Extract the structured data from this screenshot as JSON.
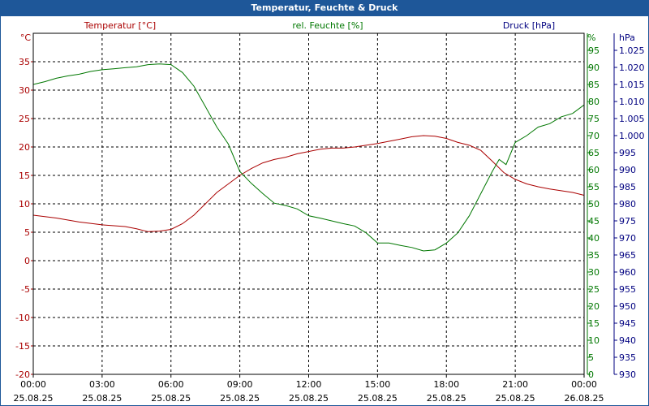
{
  "window": {
    "title": "Temperatur, Feuchte & Druck"
  },
  "chart_data": {
    "type": "line",
    "title": "Temperatur, Feuchte & Druck",
    "colors": {
      "temperature": "#aa0000",
      "humidity": "#007700",
      "pressure": "#000080",
      "frame": "#1e5799"
    },
    "x_ticks": [
      {
        "time": "00:00",
        "date": "25.08.25"
      },
      {
        "time": "03:00",
        "date": "25.08.25"
      },
      {
        "time": "06:00",
        "date": "25.08.25"
      },
      {
        "time": "09:00",
        "date": "25.08.25"
      },
      {
        "time": "12:00",
        "date": "25.08.25"
      },
      {
        "time": "15:00",
        "date": "25.08.25"
      },
      {
        "time": "18:00",
        "date": "25.08.25"
      },
      {
        "time": "21:00",
        "date": "25.08.25"
      },
      {
        "time": "00:00",
        "date": "26.08.25"
      }
    ],
    "y_axes": {
      "temperature": {
        "label": "Temperatur [°C]",
        "unit": "°C",
        "range": [
          -20,
          40
        ],
        "ticks": [
          "35",
          "30",
          "25",
          "20",
          "15",
          "10",
          "5",
          "0",
          "-5",
          "-10",
          "-15",
          "-20"
        ]
      },
      "humidity": {
        "label": "rel. Feuchte [%]",
        "unit": "%",
        "range": [
          0,
          100
        ],
        "ticks": [
          "95",
          "90",
          "85",
          "80",
          "75",
          "70",
          "65",
          "60",
          "55",
          "50",
          "45",
          "40",
          "35",
          "30",
          "25",
          "20",
          "15",
          "10",
          "5",
          "0"
        ]
      },
      "pressure": {
        "label": "Druck [hPa]",
        "unit": "hPa",
        "range": [
          930,
          1030
        ],
        "ticks": [
          "1.025",
          "1.020",
          "1.015",
          "1.010",
          "1.005",
          "1.000",
          "995",
          "990",
          "985",
          "980",
          "975",
          "970",
          "965",
          "960",
          "955",
          "950",
          "945",
          "940",
          "935",
          "930"
        ]
      }
    },
    "grid": true,
    "series": [
      {
        "name": "Temperatur [°C]",
        "axis": "temperature",
        "x_hours": [
          0,
          1,
          2,
          3,
          4,
          4.5,
          5,
          5.5,
          6,
          6.5,
          7,
          7.5,
          8,
          8.5,
          9,
          9.5,
          10,
          10.5,
          11,
          11.5,
          12,
          12.5,
          13,
          13.5,
          14,
          14.5,
          15,
          15.5,
          16,
          16.5,
          17,
          17.5,
          18,
          18.5,
          19,
          19.5,
          20,
          20.5,
          21,
          21.5,
          22,
          22.5,
          23,
          23.5,
          24
        ],
        "values": [
          8.0,
          7.5,
          6.8,
          6.3,
          6.0,
          5.6,
          5.1,
          5.2,
          5.5,
          6.5,
          8.0,
          10.0,
          12.0,
          13.5,
          15.0,
          16.2,
          17.2,
          17.8,
          18.2,
          18.8,
          19.2,
          19.6,
          19.8,
          19.8,
          20.0,
          20.3,
          20.6,
          21.0,
          21.4,
          21.8,
          22.0,
          21.9,
          21.5,
          20.8,
          20.3,
          19.4,
          17.5,
          15.5,
          14.3,
          13.5,
          13.0,
          12.6,
          12.3,
          12.0,
          11.5
        ]
      },
      {
        "name": "rel. Feuchte [%]",
        "axis": "humidity",
        "x_hours": [
          0,
          0.5,
          1,
          1.5,
          2,
          2.5,
          3,
          3.5,
          4,
          4.5,
          5,
          5.5,
          6,
          6.5,
          7,
          7.5,
          8,
          8.5,
          9,
          9.5,
          10,
          10.5,
          11,
          11.5,
          12,
          12.5,
          13,
          13.5,
          14,
          14.5,
          15,
          15.5,
          16,
          16.5,
          17,
          17.5,
          18,
          18.5,
          19,
          19.5,
          20,
          20.3,
          20.6,
          21,
          21.5,
          22,
          22.5,
          23,
          23.5,
          24
        ],
        "values": [
          85,
          85.8,
          86.8,
          87.5,
          88,
          88.8,
          89.3,
          89.6,
          89.9,
          90.2,
          90.8,
          91,
          90.8,
          88.5,
          84.5,
          78.5,
          72.5,
          67.5,
          59.5,
          56,
          53,
          50.2,
          49.5,
          48.5,
          46.5,
          45.8,
          45,
          44.2,
          43.5,
          41.5,
          38.5,
          38.5,
          37.8,
          37.2,
          36.2,
          36.5,
          38.5,
          41.5,
          46.5,
          53,
          59.5,
          63,
          61.5,
          68,
          70,
          72.5,
          73.5,
          75.5,
          76.5,
          79
        ]
      }
    ],
    "pressure_values": []
  }
}
